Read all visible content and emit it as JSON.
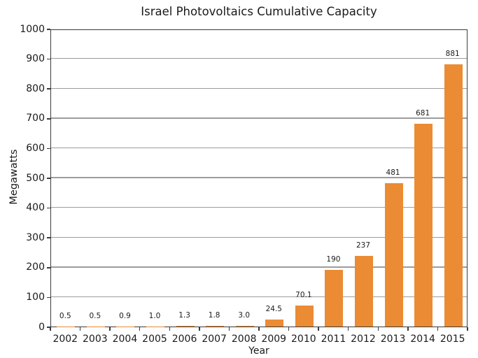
{
  "chart_data": {
    "type": "bar",
    "title": "Israel Photovoltaics Cumulative Capacity",
    "xlabel": "Year",
    "ylabel": "Megawatts",
    "categories": [
      "2002",
      "2003",
      "2004",
      "2005",
      "2006",
      "2007",
      "2008",
      "2009",
      "2010",
      "2011",
      "2012",
      "2013",
      "2014",
      "2015"
    ],
    "values": [
      0.5,
      0.5,
      0.9,
      1.0,
      1.3,
      1.8,
      3.0,
      24.5,
      70.1,
      190,
      237,
      481,
      681,
      881
    ],
    "bar_labels": [
      "0.5",
      "0.5",
      "0.9",
      "1.0",
      "1.3",
      "1.8",
      "3.0",
      "24.5",
      "70.1",
      "190",
      "237",
      "481",
      "681",
      "881"
    ],
    "ylim": [
      0,
      1000
    ],
    "yticks": [
      0,
      100,
      200,
      300,
      400,
      500,
      600,
      700,
      800,
      900,
      1000
    ],
    "grid": "horizontal",
    "legend": "none",
    "colors": {
      "bar": "#EB8B33",
      "gridline": "#9C9C9C",
      "axis": "#3A3A3A",
      "text": "#1A1A1A",
      "background": "#FFFFFF"
    }
  }
}
